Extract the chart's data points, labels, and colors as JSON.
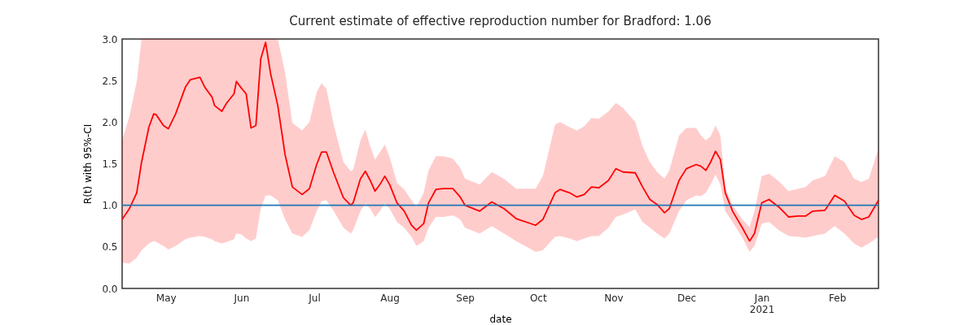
{
  "chart_data": {
    "type": "line",
    "title": "Current estimate of effective reproduction number for Bradford: 1.06",
    "xlabel": "date",
    "ylabel": "R(t) with 95%-CI",
    "x": [
      "2020-04-13",
      "2020-04-16",
      "2020-04-19",
      "2020-04-21",
      "2020-04-24",
      "2020-04-26",
      "2020-04-27",
      "2020-04-30",
      "2020-05-02",
      "2020-05-05",
      "2020-05-09",
      "2020-05-11",
      "2020-05-15",
      "2020-05-17",
      "2020-05-20",
      "2020-05-21",
      "2020-05-24",
      "2020-05-26",
      "2020-05-29",
      "2020-05-30",
      "2020-06-01",
      "2020-06-03",
      "2020-06-05",
      "2020-06-07",
      "2020-06-09",
      "2020-06-11",
      "2020-06-13",
      "2020-06-16",
      "2020-06-19",
      "2020-06-22",
      "2020-06-26",
      "2020-06-29",
      "2020-07-02",
      "2020-07-04",
      "2020-07-06",
      "2020-07-09",
      "2020-07-13",
      "2020-07-16",
      "2020-07-17",
      "2020-07-20",
      "2020-07-22",
      "2020-07-24",
      "2020-07-26",
      "2020-07-28",
      "2020-07-30",
      "2020-08-01",
      "2020-08-04",
      "2020-08-07",
      "2020-08-10",
      "2020-08-12",
      "2020-08-15",
      "2020-08-17",
      "2020-08-20",
      "2020-08-23",
      "2020-08-27",
      "2020-08-30",
      "2020-09-01",
      "2020-09-07",
      "2020-09-12",
      "2020-09-17",
      "2020-09-22",
      "2020-09-30",
      "2020-10-03",
      "2020-10-08",
      "2020-10-10",
      "2020-10-14",
      "2020-10-17",
      "2020-10-20",
      "2020-10-23",
      "2020-10-26",
      "2020-10-30",
      "2020-11-02",
      "2020-11-05",
      "2020-11-10",
      "2020-11-13",
      "2020-11-16",
      "2020-11-19",
      "2020-11-22",
      "2020-11-24",
      "2020-11-28",
      "2020-12-01",
      "2020-12-05",
      "2020-12-07",
      "2020-12-09",
      "2020-12-11",
      "2020-12-13",
      "2020-12-15",
      "2020-12-17",
      "2020-12-20",
      "2020-12-24",
      "2020-12-27",
      "2020-12-29",
      "2021-01-01",
      "2021-01-04",
      "2021-01-08",
      "2021-01-12",
      "2021-01-16",
      "2021-01-19",
      "2021-01-22",
      "2021-01-27",
      "2021-01-31",
      "2021-02-04",
      "2021-02-08",
      "2021-02-11",
      "2021-02-14",
      "2021-02-18"
    ],
    "series": [
      {
        "color": "#ff0000",
        "values": [
          0.83,
          0.96,
          1.15,
          1.52,
          1.94,
          2.1,
          2.09,
          1.96,
          1.92,
          2.1,
          2.42,
          2.51,
          2.54,
          2.42,
          2.3,
          2.2,
          2.13,
          2.23,
          2.34,
          2.49,
          2.41,
          2.34,
          1.93,
          1.96,
          2.76,
          2.96,
          2.59,
          2.2,
          1.61,
          1.22,
          1.13,
          1.2,
          1.49,
          1.64,
          1.64,
          1.39,
          1.09,
          1.0,
          1.03,
          1.32,
          1.41,
          1.3,
          1.17,
          1.25,
          1.35,
          1.25,
          1.03,
          0.93,
          0.76,
          0.7,
          0.78,
          1.03,
          1.19,
          1.2,
          1.2,
          1.1,
          1.0,
          0.93,
          1.04,
          0.96,
          0.84,
          0.76,
          0.83,
          1.15,
          1.19,
          1.15,
          1.1,
          1.13,
          1.22,
          1.21,
          1.3,
          1.44,
          1.4,
          1.39,
          1.22,
          1.07,
          1.01,
          0.91,
          0.96,
          1.3,
          1.44,
          1.49,
          1.47,
          1.42,
          1.52,
          1.65,
          1.55,
          1.15,
          0.93,
          0.73,
          0.57,
          0.66,
          1.03,
          1.07,
          0.98,
          0.86,
          0.87,
          0.87,
          0.93,
          0.94,
          1.12,
          1.05,
          0.88,
          0.83,
          0.86,
          1.06
        ],
        "upper": [
          1.78,
          2.07,
          2.49,
          3.0,
          3.0,
          3.0,
          3.0,
          3.0,
          3.0,
          3.0,
          3.0,
          3.0,
          3.0,
          3.0,
          3.0,
          3.0,
          3.0,
          3.0,
          3.0,
          3.0,
          3.0,
          3.0,
          3.0,
          3.0,
          3.0,
          3.0,
          3.0,
          3.0,
          2.6,
          1.99,
          1.9,
          2.0,
          2.36,
          2.47,
          2.4,
          1.97,
          1.52,
          1.41,
          1.43,
          1.78,
          1.91,
          1.71,
          1.55,
          1.64,
          1.73,
          1.58,
          1.27,
          1.19,
          1.06,
          0.98,
          1.15,
          1.42,
          1.59,
          1.59,
          1.56,
          1.45,
          1.32,
          1.25,
          1.4,
          1.32,
          1.2,
          1.2,
          1.35,
          1.97,
          2.0,
          1.94,
          1.9,
          1.95,
          2.05,
          2.04,
          2.13,
          2.23,
          2.17,
          2.0,
          1.71,
          1.52,
          1.4,
          1.32,
          1.42,
          1.84,
          1.93,
          1.93,
          1.84,
          1.78,
          1.83,
          1.96,
          1.84,
          1.22,
          1.0,
          0.83,
          0.74,
          0.93,
          1.35,
          1.38,
          1.29,
          1.17,
          1.2,
          1.22,
          1.3,
          1.35,
          1.59,
          1.52,
          1.32,
          1.28,
          1.32,
          1.68
        ],
        "lower": [
          0.31,
          0.3,
          0.37,
          0.46,
          0.54,
          0.57,
          0.56,
          0.51,
          0.47,
          0.51,
          0.59,
          0.61,
          0.63,
          0.62,
          0.59,
          0.57,
          0.54,
          0.56,
          0.59,
          0.66,
          0.65,
          0.6,
          0.57,
          0.6,
          0.96,
          1.12,
          1.12,
          1.06,
          0.83,
          0.66,
          0.62,
          0.7,
          0.93,
          1.05,
          1.06,
          0.93,
          0.73,
          0.66,
          0.7,
          0.93,
          1.02,
          0.96,
          0.86,
          0.93,
          1.02,
          0.96,
          0.8,
          0.73,
          0.62,
          0.51,
          0.57,
          0.73,
          0.86,
          0.86,
          0.88,
          0.83,
          0.73,
          0.66,
          0.75,
          0.66,
          0.57,
          0.44,
          0.46,
          0.62,
          0.63,
          0.6,
          0.57,
          0.6,
          0.63,
          0.63,
          0.73,
          0.86,
          0.89,
          0.95,
          0.8,
          0.73,
          0.66,
          0.6,
          0.66,
          0.93,
          1.06,
          1.12,
          1.11,
          1.15,
          1.25,
          1.37,
          1.25,
          0.93,
          0.8,
          0.61,
          0.44,
          0.51,
          0.78,
          0.8,
          0.7,
          0.63,
          0.62,
          0.61,
          0.63,
          0.66,
          0.75,
          0.66,
          0.54,
          0.49,
          0.54,
          0.62
        ]
      }
    ],
    "xlim": [
      "2020-04-13",
      "2021-02-18"
    ],
    "xticks": [
      {
        "value": "2020-05-01",
        "label": "May"
      },
      {
        "value": "2020-06-01",
        "label": "Jun"
      },
      {
        "value": "2020-07-01",
        "label": "Jul"
      },
      {
        "value": "2020-08-01",
        "label": "Aug"
      },
      {
        "value": "2020-09-01",
        "label": "Sep"
      },
      {
        "value": "2020-10-01",
        "label": "Oct"
      },
      {
        "value": "2020-11-01",
        "label": "Nov"
      },
      {
        "value": "2020-12-01",
        "label": "Dec"
      },
      {
        "value": "2021-01-01",
        "label": "Jan\n2021"
      },
      {
        "value": "2021-02-01",
        "label": "Feb"
      }
    ],
    "ylim": [
      0,
      3
    ],
    "yticks": [
      {
        "value": 0,
        "label": "0.0"
      },
      0.5,
      {
        "value": 1,
        "label": "1.0"
      },
      1.5,
      {
        "value": 2,
        "label": "2.0"
      },
      2.5,
      {
        "value": 3,
        "label": "3.0"
      }
    ],
    "ref_lines": [
      {
        "axis": "y",
        "value": 1,
        "color": "#1f77b4"
      }
    ],
    "line_style": "solid"
  }
}
